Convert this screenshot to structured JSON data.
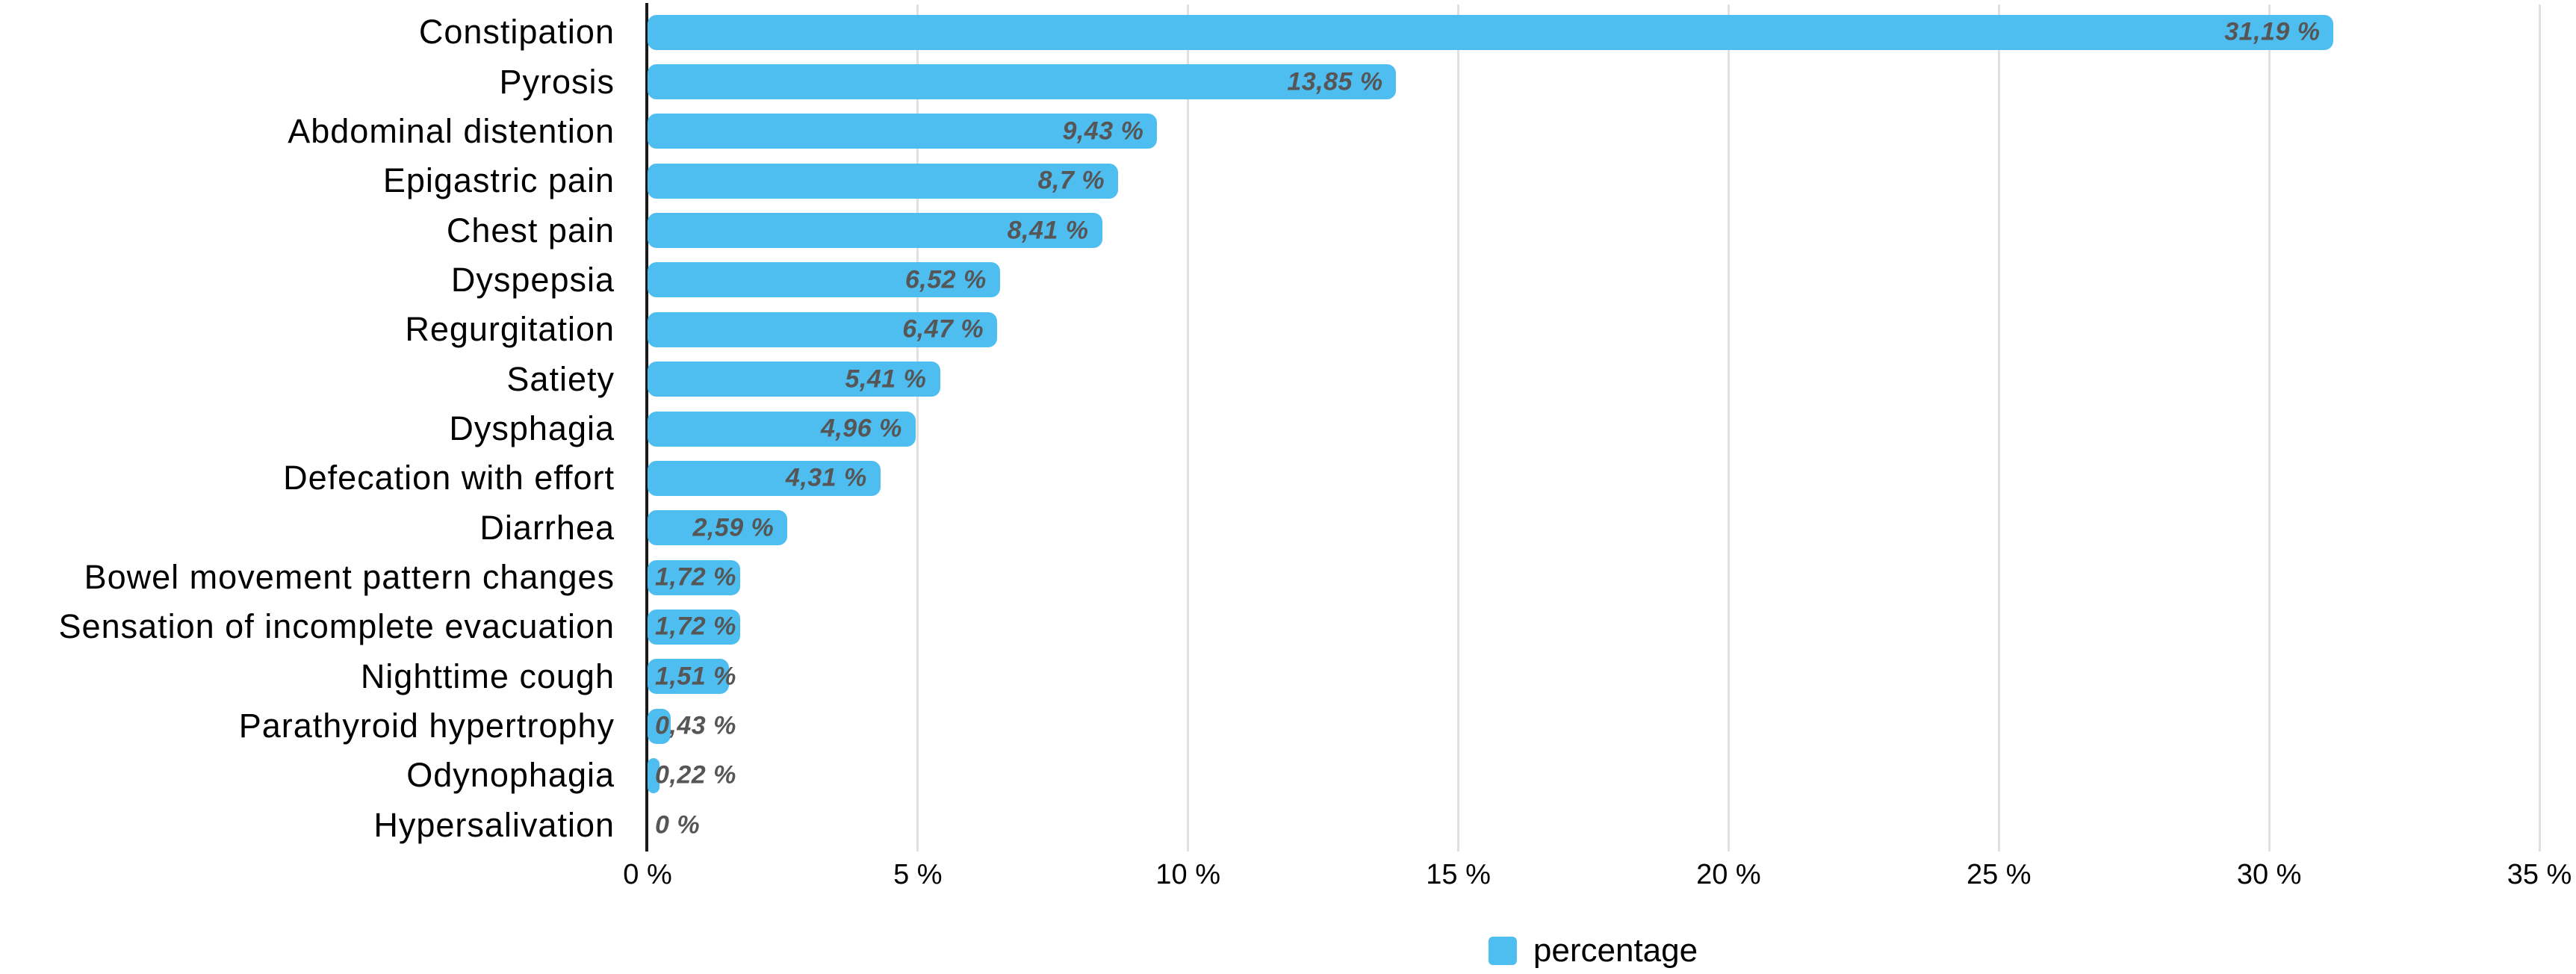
{
  "chart_data": {
    "type": "bar",
    "orientation": "horizontal",
    "title": "",
    "xlabel": "",
    "ylabel": "",
    "series_name": "percentage",
    "categories": [
      "Constipation",
      "Pyrosis",
      "Abdominal distention",
      "Epigastric pain",
      "Chest pain",
      "Dyspepsia",
      "Regurgitation",
      "Satiety",
      "Dysphagia",
      "Defecation with effort",
      "Diarrhea",
      "Bowel movement pattern changes",
      "Sensation of incomplete evacuation",
      "Nighttime cough",
      "Parathyroid hypertrophy",
      "Odynophagia",
      "Hypersalivation"
    ],
    "values": [
      31.19,
      13.85,
      9.43,
      8.7,
      8.41,
      6.52,
      6.47,
      5.41,
      4.96,
      4.31,
      2.59,
      1.72,
      1.72,
      1.51,
      0.43,
      0.22,
      0
    ],
    "value_labels": [
      "31,19 %",
      "13,85 %",
      "9,43 %",
      "8,7 %",
      "8,41 %",
      "6,52 %",
      "6,47 %",
      "5,41 %",
      "4,96 %",
      "4,31 %",
      "2,59 %",
      "1,72 %",
      "1,72 %",
      "1,51 %",
      "0,43 %",
      "0,22 %",
      "0 %"
    ],
    "xlim": [
      0,
      35
    ],
    "x_ticks": [
      "0 %",
      "5 %",
      "10 %",
      "15 %",
      "20 %",
      "25 %",
      "30 %",
      "35 %"
    ],
    "grid": "vertical",
    "legend_position": "bottom"
  },
  "colors": {
    "bar": "#4ebdf0",
    "gridline": "#e0e0e0",
    "axis": "#1a1a1a",
    "value_label": "#565656",
    "text": "#000000",
    "background": "#ffffff"
  }
}
